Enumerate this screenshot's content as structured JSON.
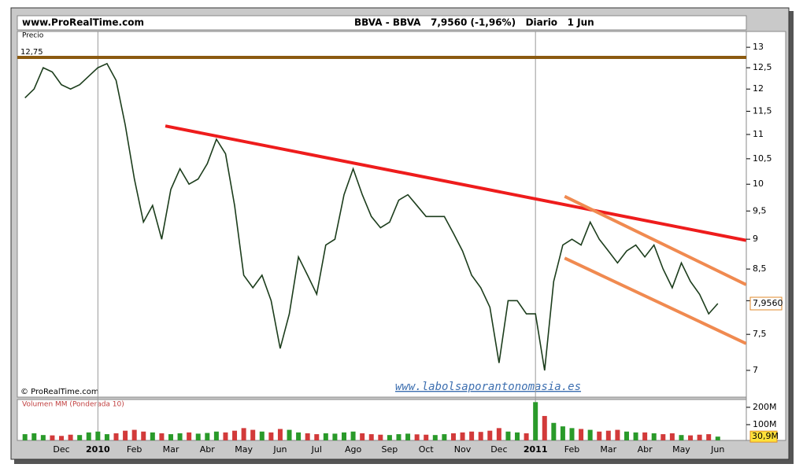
{
  "chart_data": {
    "type": "line",
    "site": "www.ProRealTime.com",
    "title": "BBVA - BBVA   7,9560 (-1,96%)   Diario   1 Jun",
    "axis_label": "Precio",
    "copyright": "© ProRealTime.com",
    "watermark": "www.labolsaporantonomasia.es",
    "log": true,
    "color": "#1c3d1c",
    "categories": [
      null,
      null,
      null,
      null,
      "Dec",
      null,
      null,
      null,
      "2010",
      null,
      null,
      null,
      "Feb",
      null,
      null,
      null,
      "Mar",
      null,
      null,
      null,
      "Abr",
      null,
      null,
      null,
      "May",
      null,
      null,
      null,
      "Jun",
      null,
      null,
      null,
      "Jul",
      null,
      null,
      null,
      "Ago",
      null,
      null,
      null,
      "Sep",
      null,
      null,
      null,
      "Oct",
      null,
      null,
      null,
      "Nov",
      null,
      null,
      null,
      "Dec",
      null,
      null,
      null,
      "2011",
      null,
      null,
      null,
      "Feb",
      null,
      null,
      null,
      "Mar",
      null,
      null,
      null,
      "Abr",
      null,
      null,
      null,
      "May",
      null,
      null,
      null,
      "Jun"
    ],
    "values": [
      11.8,
      12.0,
      12.5,
      12.4,
      12.1,
      12.0,
      12.1,
      12.3,
      12.5,
      12.6,
      12.2,
      11.2,
      10.1,
      9.3,
      9.6,
      9.0,
      9.9,
      10.3,
      10.0,
      10.1,
      10.4,
      10.9,
      10.6,
      9.6,
      8.4,
      8.2,
      8.4,
      8.0,
      7.3,
      7.8,
      8.7,
      8.4,
      8.1,
      8.9,
      9.0,
      9.8,
      10.3,
      9.8,
      9.4,
      9.2,
      9.3,
      9.7,
      9.8,
      9.6,
      9.4,
      9.4,
      9.4,
      9.1,
      8.8,
      8.4,
      8.2,
      7.9,
      7.1,
      8.0,
      8.0,
      7.8,
      7.8,
      7.0,
      8.3,
      8.9,
      9.0,
      8.9,
      9.3,
      9.0,
      8.8,
      8.6,
      8.8,
      8.9,
      8.7,
      8.9,
      8.5,
      8.2,
      8.6,
      8.3,
      8.1,
      7.8,
      7.956
    ],
    "last": {
      "value": 7.956,
      "label": "7,9560"
    },
    "ylim": [
      6.65,
      13.4
    ],
    "yticks": [
      7,
      {
        "value": 7.5,
        "label": "7,5"
      },
      8,
      {
        "value": 8.5,
        "label": "8,5"
      },
      9,
      {
        "value": 9.5,
        "label": "9,5"
      },
      10,
      {
        "value": 10.5,
        "label": "10,5"
      },
      11,
      {
        "value": 11.5,
        "label": "11,5"
      },
      12,
      {
        "value": 12.5,
        "label": "12,5"
      },
      13
    ],
    "hline": {
      "value": 12.75,
      "label": "12,75",
      "color": "#8b5a10"
    },
    "trendlines": [
      {
        "color": "#ee1c1c",
        "x": [
          15.4,
          79.1
        ],
        "values": [
          11.18,
          8.98
        ]
      },
      {
        "color": "#f08a50",
        "x": [
          59.2,
          79.1
        ],
        "values": [
          9.77,
          8.25
        ]
      },
      {
        "color": "#f08a50",
        "x": [
          59.2,
          79.1
        ],
        "values": [
          8.68,
          7.37
        ]
      }
    ],
    "volume": {
      "type": "bar",
      "title": "Volumen MM (Ponderada 10)",
      "up_color": "#2a9a2a",
      "down_color": "#d23a3a",
      "values": [
        45,
        50,
        40,
        38,
        35,
        42,
        40,
        55,
        60,
        45,
        50,
        65,
        70,
        60,
        55,
        50,
        45,
        50,
        55,
        48,
        52,
        60,
        55,
        65,
        80,
        70,
        60,
        55,
        75,
        70,
        55,
        50,
        45,
        50,
        48,
        55,
        60,
        50,
        45,
        42,
        40,
        45,
        48,
        44,
        42,
        40,
        45,
        50,
        55,
        60,
        58,
        65,
        80,
        60,
        55,
        50,
        230,
        150,
        110,
        90,
        80,
        75,
        70,
        60,
        65,
        70,
        60,
        55,
        55,
        50,
        45,
        50,
        40,
        38,
        42,
        45,
        30.9
      ],
      "last": {
        "value": 30.9,
        "label": "30,9M"
      },
      "ylim": [
        0,
        245
      ],
      "yticks": [
        {
          "value": 100,
          "label": "100M"
        },
        {
          "value": 200,
          "label": "200M"
        }
      ]
    }
  }
}
